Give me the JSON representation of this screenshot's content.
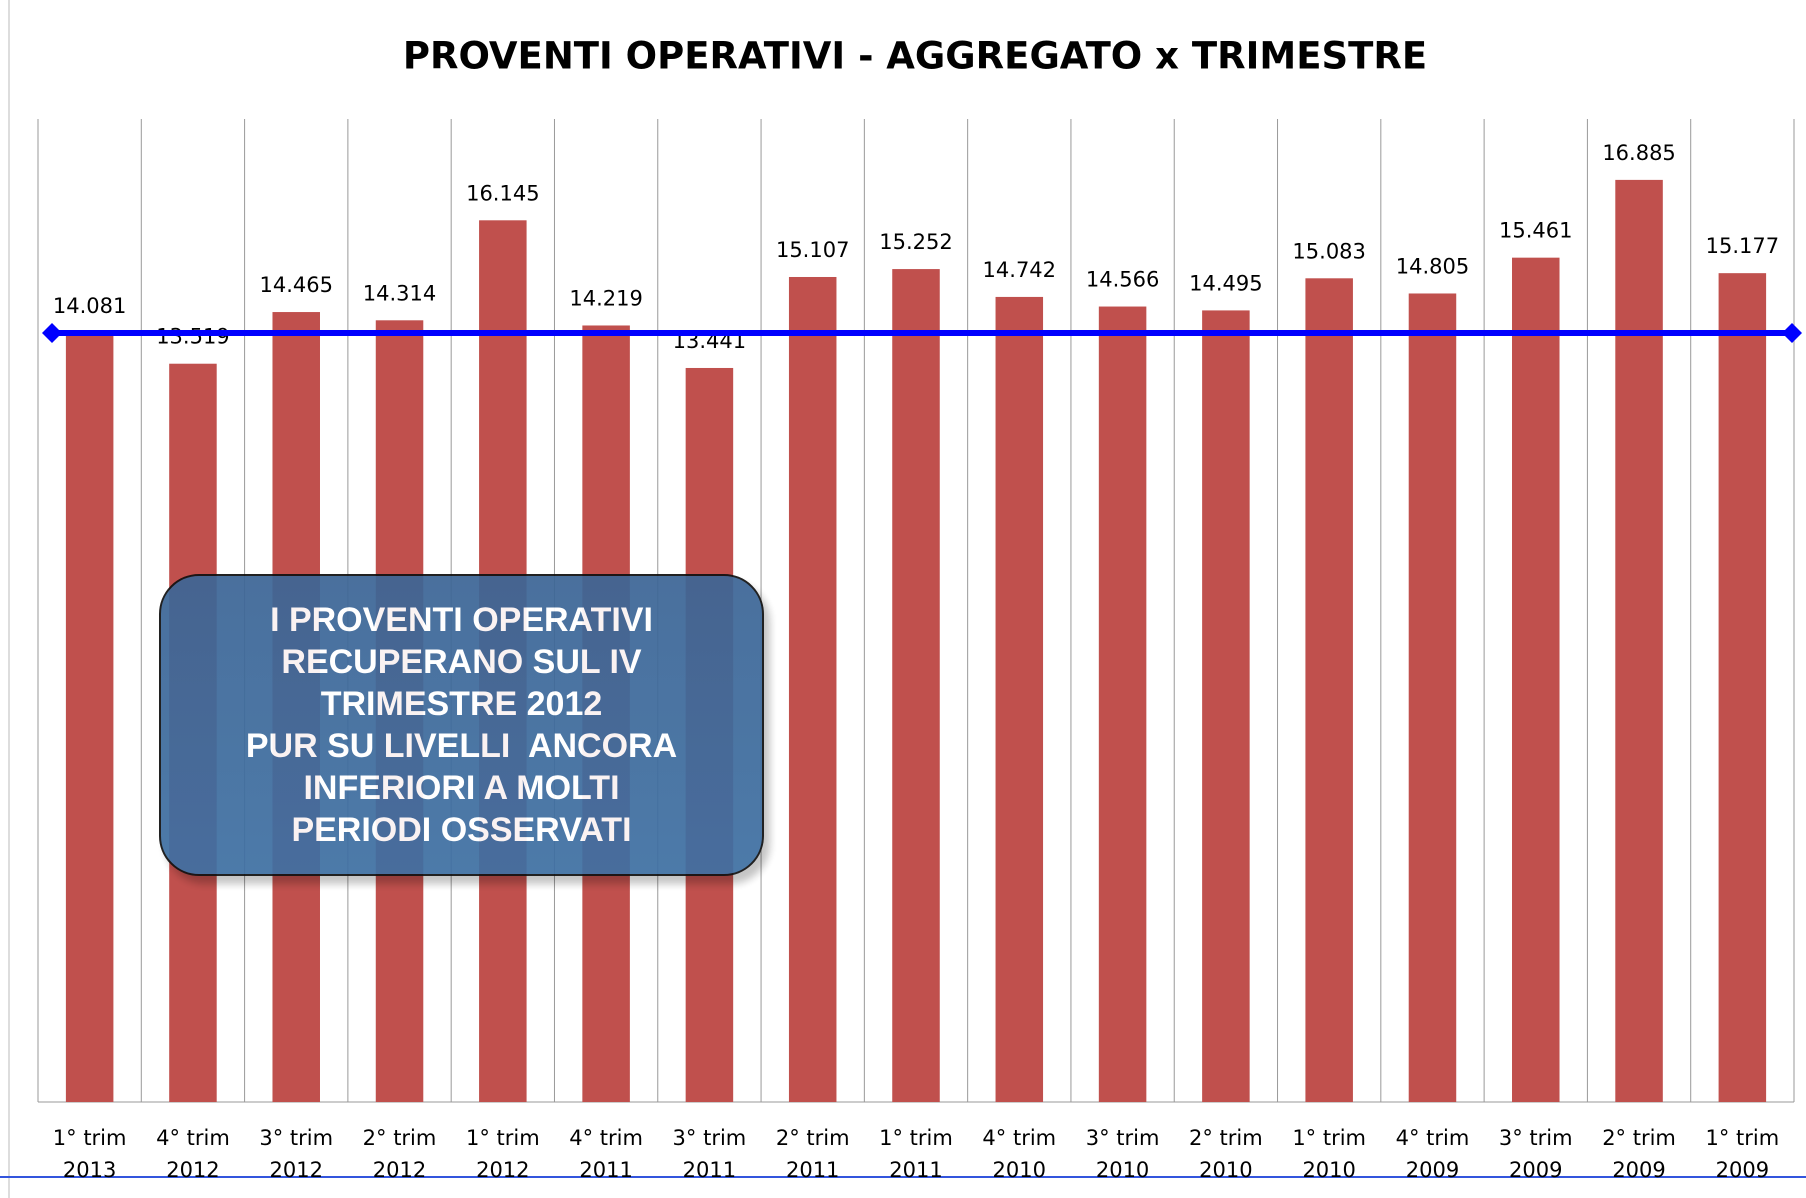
{
  "chart_data": {
    "type": "bar",
    "title": "PROVENTI OPERATIVI - AGGREGATO x TRIMESTRE",
    "categories": [
      "1° trim 2013",
      "4° trim 2012",
      "3° trim 2012",
      "2° trim 2012",
      "1° trim 2012",
      "4° trim 2011",
      "3° trim 2011",
      "2° trim 2011",
      "1° trim 2011",
      "4° trim 2010",
      "3° trim 2010",
      "2° trim 2010",
      "1° trim 2010",
      "4° trim 2009",
      "3° trim 2009",
      "2° trim 2009",
      "1° trim 2009"
    ],
    "values": [
      14.081,
      13.519,
      14.465,
      14.314,
      16.145,
      14.219,
      13.441,
      15.107,
      15.252,
      14.742,
      14.566,
      14.495,
      15.083,
      14.805,
      15.461,
      16.885,
      15.177
    ],
    "color": "#c0504d",
    "ylim": [
      0,
      18
    ],
    "reference_line": {
      "value": 14.081,
      "color": "#0000ff"
    },
    "annotation": [
      "I PROVENTI OPERATIVI",
      "RECUPERANO SUL IV",
      "TRIMESTRE 2012",
      "PUR SU LIVELLI  ANCORA",
      "INFERIORI A MOLTI",
      "PERIODI OSSERVATI"
    ]
  }
}
